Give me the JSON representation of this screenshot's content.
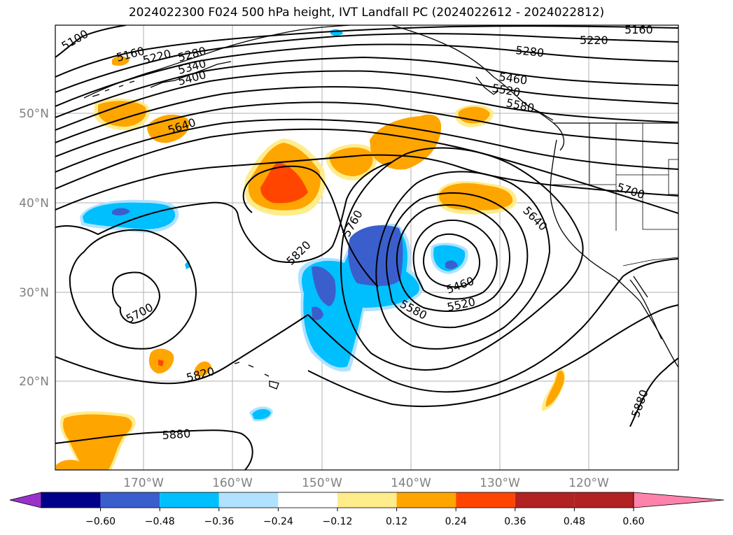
{
  "title": "2024022300 F024 500 hPa height, IVT Landfall PC (2024022612 - 2024022812)",
  "lat_labels": [
    "50°N",
    "40°N",
    "30°N",
    "20°N"
  ],
  "lon_labels": [
    "170°W",
    "160°W",
    "150°W",
    "140°W",
    "130°W",
    "120°W"
  ],
  "contour_labels": [
    "5100",
    "5160",
    "5220",
    "5280",
    "5340",
    "5400",
    "5640",
    "5160",
    "5220",
    "5280",
    "5460",
    "5520",
    "5580",
    "5760",
    "5820",
    "5700",
    "5820",
    "5880",
    "5460",
    "5520",
    "5580",
    "5640",
    "5700",
    "5880"
  ],
  "colorbar": {
    "ticks": [
      "−0.60",
      "−0.48",
      "−0.36",
      "−0.24",
      "−0.12",
      "0.12",
      "0.24",
      "0.36",
      "0.48",
      "0.60"
    ],
    "colors": [
      "#9932cc",
      "#00008b",
      "#3a5fcd",
      "#00bfff",
      "#b0e2ff",
      "#ffffff",
      "#ffec8b",
      "#ffa500",
      "#ff4500",
      "#b22222",
      "#ff82ab"
    ]
  }
}
